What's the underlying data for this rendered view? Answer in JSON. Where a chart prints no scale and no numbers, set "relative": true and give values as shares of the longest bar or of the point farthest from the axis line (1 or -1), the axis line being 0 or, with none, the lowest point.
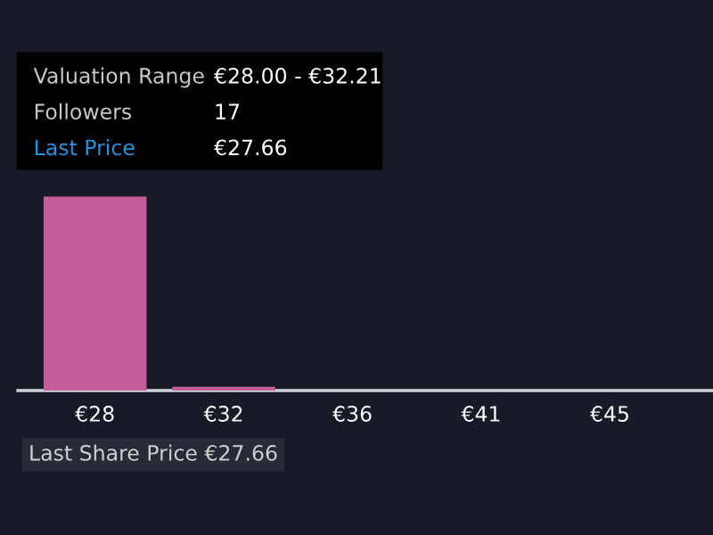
{
  "chart_data": {
    "type": "bar",
    "relative": true,
    "categories": [
      "€28",
      "€32",
      "€36",
      "€41",
      "€45"
    ],
    "values": [
      1,
      0.02,
      0,
      0,
      0
    ],
    "color": "#c45c99",
    "grid": false,
    "annotations": [
      "Valuation Range",
      "€28.00 - €32.21",
      "Followers",
      "17",
      "Last Price",
      "€27.66",
      "Last Share Price €27.66"
    ]
  }
}
